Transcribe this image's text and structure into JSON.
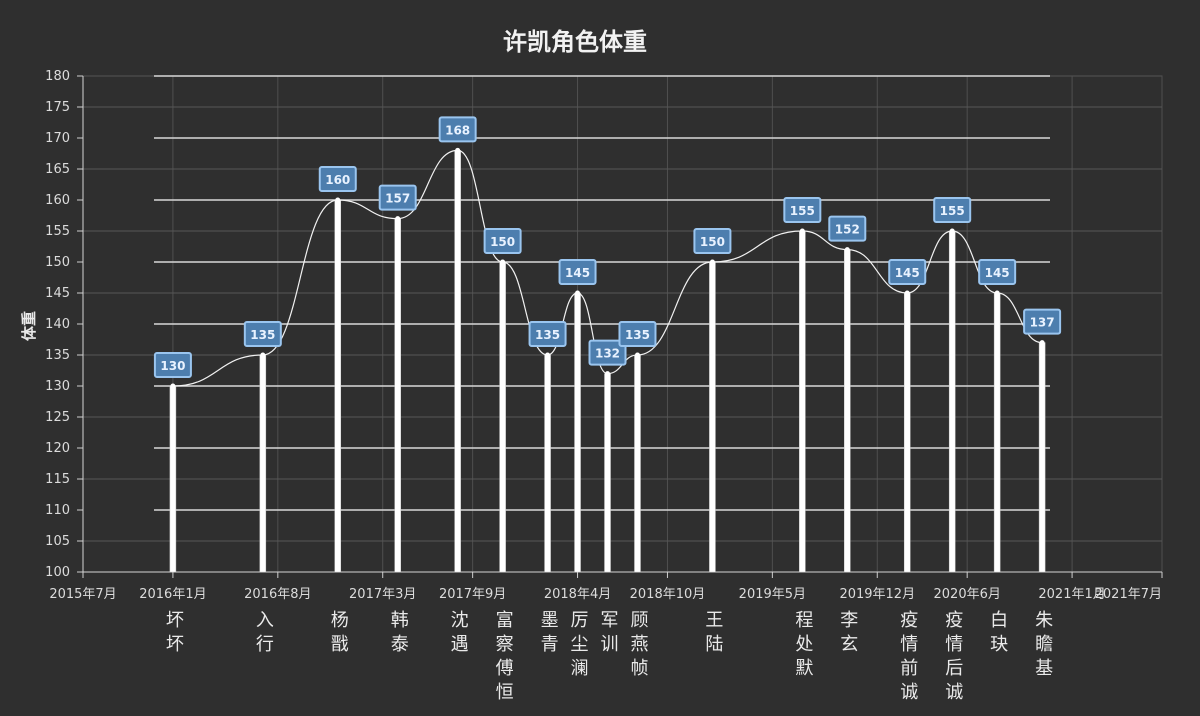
{
  "chart_data": {
    "type": "bar",
    "title": "许凯角色体重",
    "xlabel": "",
    "ylabel": "体重",
    "ylim": [
      100,
      180
    ],
    "yticks": [
      100,
      105,
      110,
      115,
      120,
      125,
      130,
      135,
      140,
      145,
      150,
      155,
      160,
      165,
      170,
      175,
      180
    ],
    "xlim": [
      "2015-07",
      "2021-07"
    ],
    "x_ticks": [
      {
        "date": "2015-07",
        "label": "2015年7月"
      },
      {
        "date": "2016-01",
        "label": "2016年1月"
      },
      {
        "date": "2016-08",
        "label": "2016年8月"
      },
      {
        "date": "2017-03",
        "label": "2017年3月"
      },
      {
        "date": "2017-09",
        "label": "2017年9月"
      },
      {
        "date": "2018-04",
        "label": "2018年4月"
      },
      {
        "date": "2018-10",
        "label": "2018年10月"
      },
      {
        "date": "2019-05",
        "label": "2019年5月"
      },
      {
        "date": "2019-12",
        "label": "2019年12月"
      },
      {
        "date": "2020-06",
        "label": "2020年6月"
      },
      {
        "date": "2021-01",
        "label": "2021年1月"
      },
      {
        "date": "2021-07",
        "label": "2021年7月"
      }
    ],
    "points": [
      {
        "date": "2016-01",
        "name": "坏坏",
        "value": 130
      },
      {
        "date": "2016-07",
        "name": "入行",
        "value": 135
      },
      {
        "date": "2016-12",
        "name": "杨戬",
        "value": 160
      },
      {
        "date": "2017-04",
        "name": "韩泰",
        "value": 157
      },
      {
        "date": "2017-08",
        "name": "沈遇",
        "value": 168
      },
      {
        "date": "2017-11",
        "name": "富察傅恒",
        "value": 150
      },
      {
        "date": "2018-02",
        "name": "墨青",
        "value": 135
      },
      {
        "date": "2018-04",
        "name": "厉尘澜",
        "value": 145
      },
      {
        "date": "2018-06",
        "name": "军训",
        "value": 132
      },
      {
        "date": "2018-08",
        "name": "顾燕帧",
        "value": 135
      },
      {
        "date": "2019-01",
        "name": "王陆",
        "value": 150
      },
      {
        "date": "2019-07",
        "name": "程处默",
        "value": 155
      },
      {
        "date": "2019-10",
        "name": "李玄",
        "value": 152
      },
      {
        "date": "2020-02",
        "name": "疫情前诚",
        "value": 145
      },
      {
        "date": "2020-05",
        "name": "疫情后诚",
        "value": 155
      },
      {
        "date": "2020-08",
        "name": "白玦",
        "value": 145
      },
      {
        "date": "2020-11",
        "name": "朱瞻基",
        "value": 137
      }
    ],
    "grid": true,
    "legend": "none",
    "colors": {
      "background": "#2f2f2f",
      "bar": "#ffffff",
      "label_fill": "#4d7eae",
      "label_stroke": "#9ac5ef",
      "grid": "#565656"
    }
  }
}
